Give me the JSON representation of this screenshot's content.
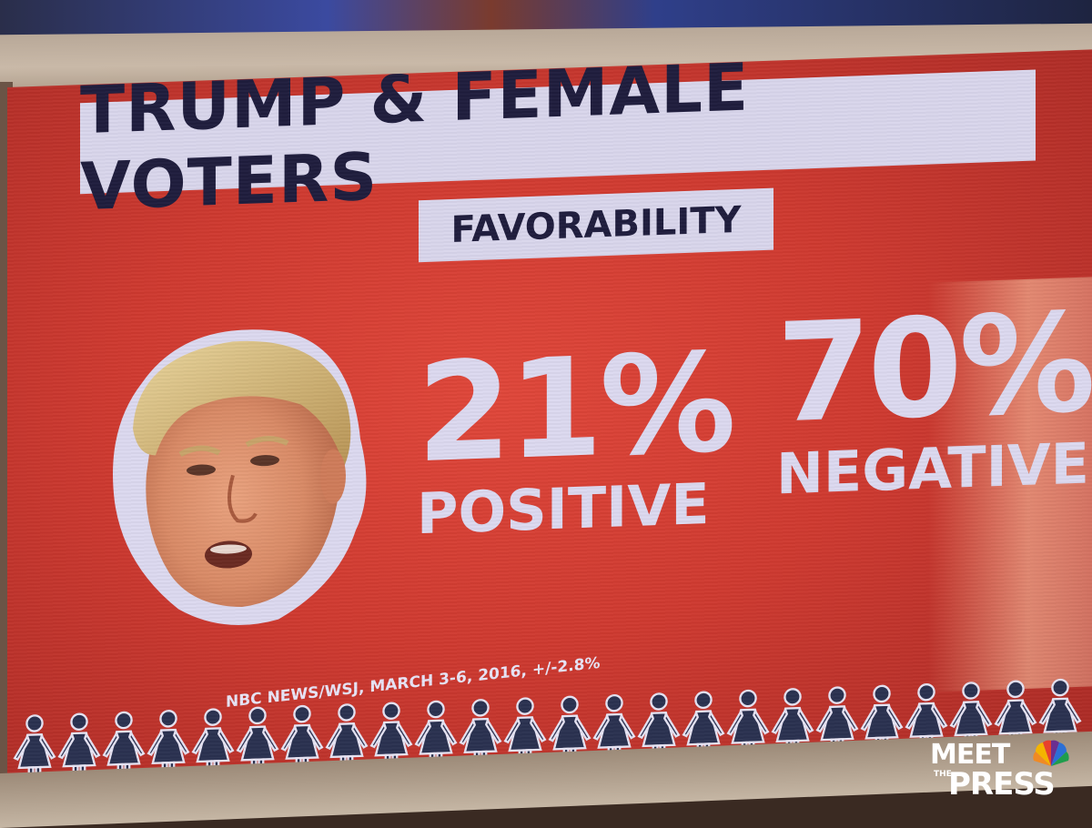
{
  "graphic": {
    "title": "TRUMP & FEMALE VOTERS",
    "subtitle": "FAVORABILITY",
    "positive": {
      "value": "21%",
      "label": "POSITIVE"
    },
    "negative": {
      "value": "70%",
      "label": "NEGATIVE"
    },
    "source": "NBC NEWS/WSJ, MARCH 3-6, 2016, +/-2.8%"
  },
  "logo": {
    "line1": "MEET",
    "line2": "THE",
    "line3": "PRESS"
  },
  "colors": {
    "background_red": "#cf3a30",
    "text_lavender": "#dcd9f0",
    "title_box": "#d9d6ec",
    "title_text": "#1f1d3d",
    "figure_fill": "#2a3150",
    "figure_outline": "#e6e3f3"
  },
  "icons": [
    "candidate-portrait",
    "female-figure-icon",
    "nbc-peacock-icon"
  ]
}
